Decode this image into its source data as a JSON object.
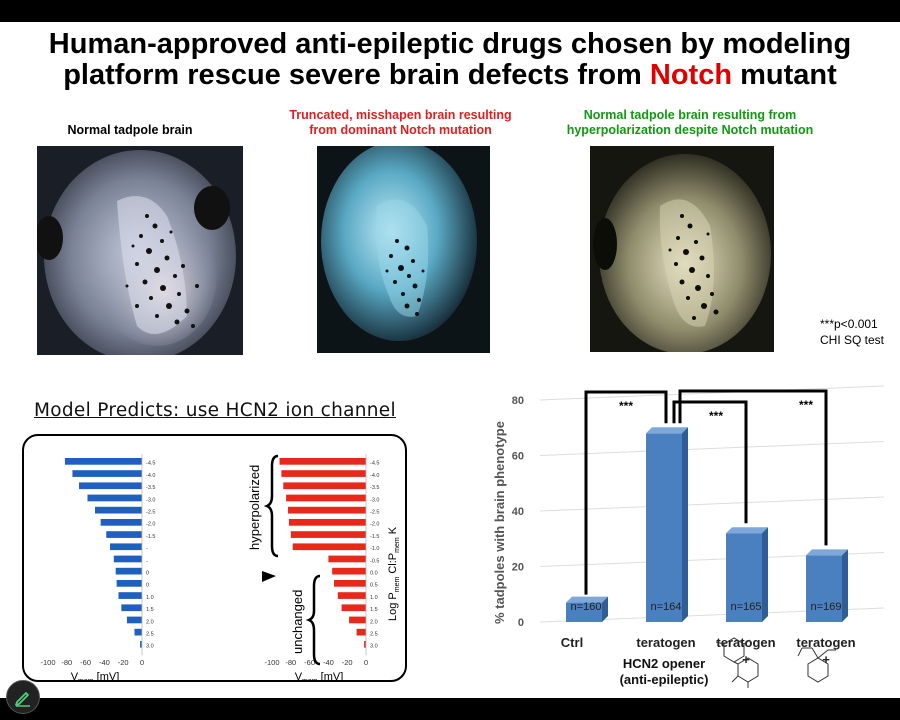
{
  "title": {
    "line1": "Human-approved anti-epileptic drugs chosen by modeling",
    "line2_pre": "platform rescue severe brain defects from ",
    "line2_highlight": "Notch",
    "line2_post": " mutant",
    "highlight_color": "#e00000"
  },
  "images": [
    {
      "caption": "Normal tadpole brain",
      "caption_color": "#000000"
    },
    {
      "caption_line1": "Truncated, misshapen brain resulting",
      "caption_line2": "from dominant Notch mutation",
      "caption_color": "#e02020"
    },
    {
      "caption_line1": "Normal tadpole brain resulting from",
      "caption_line2": "hyperpolarization despite Notch mutation",
      "caption_color": "#119911"
    }
  ],
  "model": {
    "heading": "Model Predicts: use HCN2 ion channel",
    "left_chart": {
      "ticks": [
        "-4.5",
        "-4.0",
        "-3.5",
        "-3.0",
        "-2.5",
        "-2.0",
        "-1.5",
        "-",
        "-",
        "0",
        "0",
        "1.0",
        "1.5",
        "2.0",
        "2.5",
        "3.0"
      ],
      "values": [
        -82,
        -74,
        -67,
        -58,
        -50,
        -44,
        -38,
        -34,
        -30,
        -28,
        -27,
        -25,
        -22,
        -16,
        -8,
        -2
      ],
      "x_ticks": [
        "-100",
        "-80",
        "-60",
        "-40",
        "-20",
        "0"
      ],
      "x_label_main": "V",
      "x_label_sub": "mem",
      "x_label_unit": " [mV]",
      "xlim": [
        -100,
        0
      ],
      "color": "#1f5fbf"
    },
    "right_chart": {
      "ticks": [
        "-4.5",
        "-4.0",
        "-3.5",
        "-3.0",
        "-2.5",
        "-2.0",
        "-1.5",
        "-1.0",
        "-0.5",
        "0.0",
        "0.5",
        "1.0",
        "1.5",
        "2.0",
        "2.5",
        "3.0"
      ],
      "values": [
        -92,
        -90,
        -88,
        -85,
        -83,
        -82,
        -80,
        -78,
        -40,
        -36,
        -34,
        -30,
        -26,
        -18,
        -10,
        -2
      ],
      "x_ticks": [
        "-100",
        "-80",
        "-60",
        "-40",
        "-20",
        "0"
      ],
      "x_label_main": "V",
      "x_label_sub": "mem",
      "x_label_unit": " [mV]",
      "xlim": [
        -100,
        0
      ],
      "color": "#e8281a",
      "label_hyper": "hyperpolarized",
      "label_unchanged": "unchanged",
      "ylabel_parts": [
        "Log P",
        "mem",
        " Cl:P",
        "mem",
        " K"
      ]
    }
  },
  "chart_data": {
    "type": "bar",
    "categories": [
      "Ctrl",
      "teratogen",
      "teratogen",
      "teratogen"
    ],
    "category_suffix": [
      "",
      "",
      "+",
      "+"
    ],
    "values": [
      7,
      68,
      32,
      24
    ],
    "n_labels": [
      "n=160",
      "n=164",
      "n=165",
      "n=169"
    ],
    "ylabel": "% tadpoles with brain phenotype",
    "yticks": [
      "0",
      "20",
      "40",
      "60",
      "80"
    ],
    "ylim": [
      0,
      80
    ],
    "significance": [
      "***",
      "***",
      "***"
    ],
    "sig_note_line1": "***p<0.001",
    "sig_note_line2": "CHI SQ test",
    "bar_color": "#4a7fc0",
    "drug_label_line1": "HCN2 opener",
    "drug_label_line2": "(anti-epileptic)"
  }
}
